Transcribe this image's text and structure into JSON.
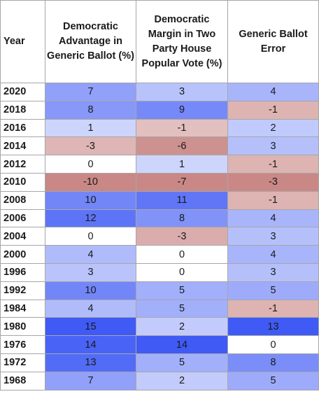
{
  "headers": {
    "year": "Year",
    "advantage": "Democratic Advantage in Generic Ballot (%)",
    "margin": "Democratic Margin in Two Party House Popular Vote (%)",
    "error": "Generic Ballot Error"
  },
  "colors": {
    "positive_scale": "#3f5af5",
    "negative_scale": "#c98886",
    "neutral": "#ffffff"
  },
  "rows": [
    {
      "year": "2020",
      "advantage": "7",
      "margin": "3",
      "error": "4"
    },
    {
      "year": "2018",
      "advantage": "8",
      "margin": "9",
      "error": "-1"
    },
    {
      "year": "2016",
      "advantage": "1",
      "margin": "-1",
      "error": "2"
    },
    {
      "year": "2014",
      "advantage": "-3",
      "margin": "-6",
      "error": "3"
    },
    {
      "year": "2012",
      "advantage": "0",
      "margin": "1",
      "error": "-1"
    },
    {
      "year": "2010",
      "advantage": "-10",
      "margin": "-7",
      "error": "-3"
    },
    {
      "year": "2008",
      "advantage": "10",
      "margin": "11",
      "error": "-1"
    },
    {
      "year": "2006",
      "advantage": "12",
      "margin": "8",
      "error": "4"
    },
    {
      "year": "2004",
      "advantage": "0",
      "margin": "-3",
      "error": "3"
    },
    {
      "year": "2000",
      "advantage": "4",
      "margin": "0",
      "error": "4"
    },
    {
      "year": "1996",
      "advantage": "3",
      "margin": "0",
      "error": "3"
    },
    {
      "year": "1992",
      "advantage": "10",
      "margin": "5",
      "error": "5"
    },
    {
      "year": "1984",
      "advantage": "4",
      "margin": "5",
      "error": "-1"
    },
    {
      "year": "1980",
      "advantage": "15",
      "margin": "2",
      "error": "13"
    },
    {
      "year": "1976",
      "advantage": "14",
      "margin": "14",
      "error": "0"
    },
    {
      "year": "1972",
      "advantage": "13",
      "margin": "5",
      "error": "8"
    },
    {
      "year": "1968",
      "advantage": "7",
      "margin": "2",
      "error": "5"
    }
  ]
}
